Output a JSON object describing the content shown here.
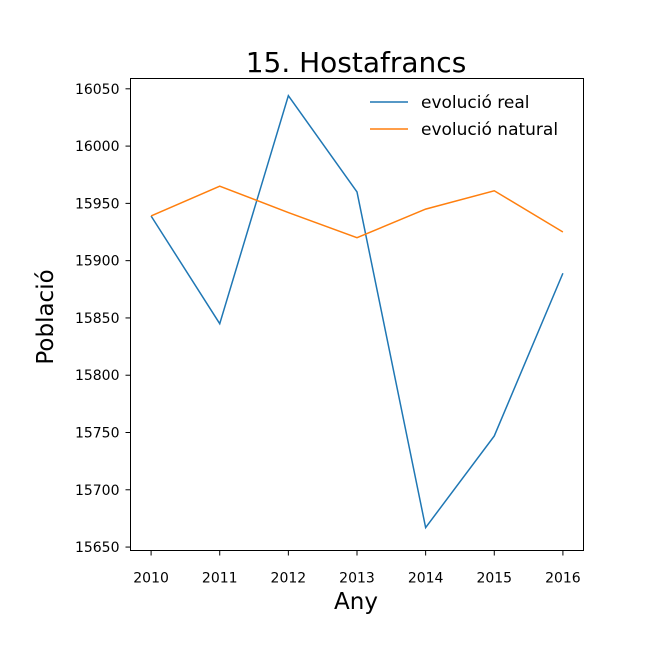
{
  "chart_data": {
    "type": "line",
    "title": "15. Hostafrancs",
    "xlabel": "Any",
    "ylabel": "Població",
    "x": [
      2010,
      2011,
      2012,
      2013,
      2014,
      2015,
      2016
    ],
    "xlim": [
      2009.7,
      2016.3
    ],
    "ylim": [
      15647,
      16059
    ],
    "yticks": [
      15650,
      15700,
      15750,
      15800,
      15850,
      15900,
      15950,
      16000,
      16050
    ],
    "grid": false,
    "legend_position": "top-right",
    "series": [
      {
        "name": "evolució real",
        "color": "#1f77b4",
        "values": [
          15939,
          15845,
          16044,
          15960,
          15667,
          15747,
          15889
        ]
      },
      {
        "name": "evolució natural",
        "color": "#ff7f0e",
        "values": [
          15939,
          15965,
          15942,
          15920,
          15945,
          15961,
          15925
        ]
      }
    ]
  }
}
